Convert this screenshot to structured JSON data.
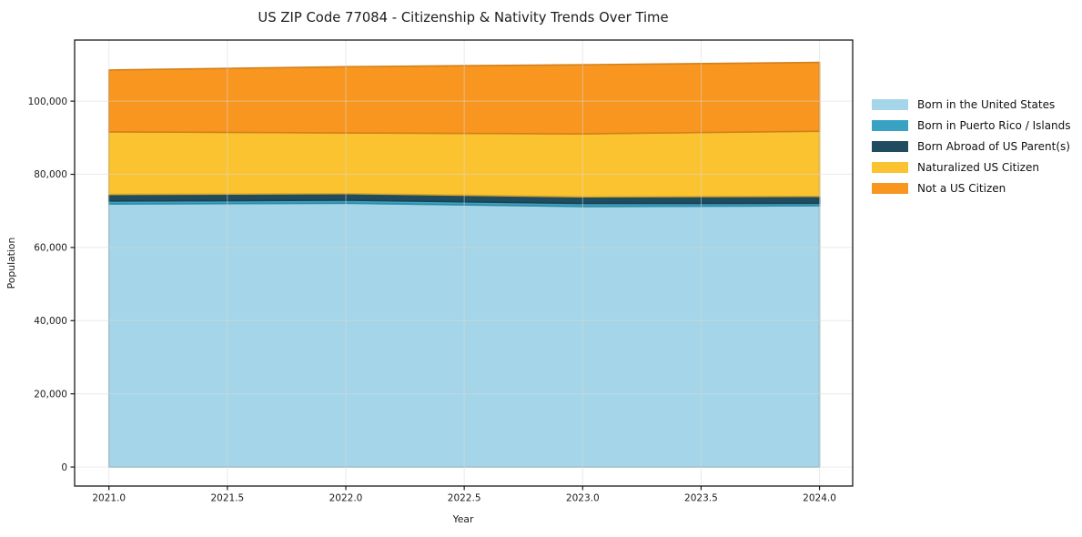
{
  "chart_data": {
    "type": "area",
    "stacked": true,
    "title": "US ZIP Code 77084 - Citizenship & Nativity Trends Over Time",
    "xlabel": "Year",
    "ylabel": "Population",
    "x": [
      2021,
      2022,
      2023,
      2024
    ],
    "series": [
      {
        "name": "Born in the United States",
        "color": "#a5d5e8",
        "values": [
          71900,
          72100,
          71200,
          71400
        ]
      },
      {
        "name": "Born in Puerto Rico / Islands",
        "color": "#39a2c2",
        "values": [
          800,
          820,
          850,
          680
        ]
      },
      {
        "name": "Born Abroad of US Parent(s)",
        "color": "#204c5f",
        "values": [
          1800,
          1800,
          1800,
          1900
        ]
      },
      {
        "name": "Naturalized US Citizen",
        "color": "#fcc330",
        "values": [
          17100,
          16600,
          17200,
          17800
        ]
      },
      {
        "name": "Not a US Citizen",
        "color": "#f8961f",
        "values": [
          16900,
          18100,
          18900,
          18800
        ]
      }
    ],
    "xlim": [
      2020.855,
      2024.14
    ],
    "ylim": [
      -5200,
      116700
    ],
    "xticks": {
      "values": [
        2021.0,
        2021.5,
        2022.0,
        2022.5,
        2023.0,
        2023.5,
        2024.0
      ],
      "labels": [
        "2021.0",
        "2021.5",
        "2022.0",
        "2022.5",
        "2023.0",
        "2023.5",
        "2024.0"
      ]
    },
    "yticks": {
      "values": [
        0,
        20000,
        40000,
        60000,
        80000,
        100000
      ],
      "labels": [
        "0",
        "20,000",
        "40,000",
        "60,000",
        "80,000",
        "100,000"
      ]
    },
    "grid": true,
    "legend_position": "right"
  }
}
